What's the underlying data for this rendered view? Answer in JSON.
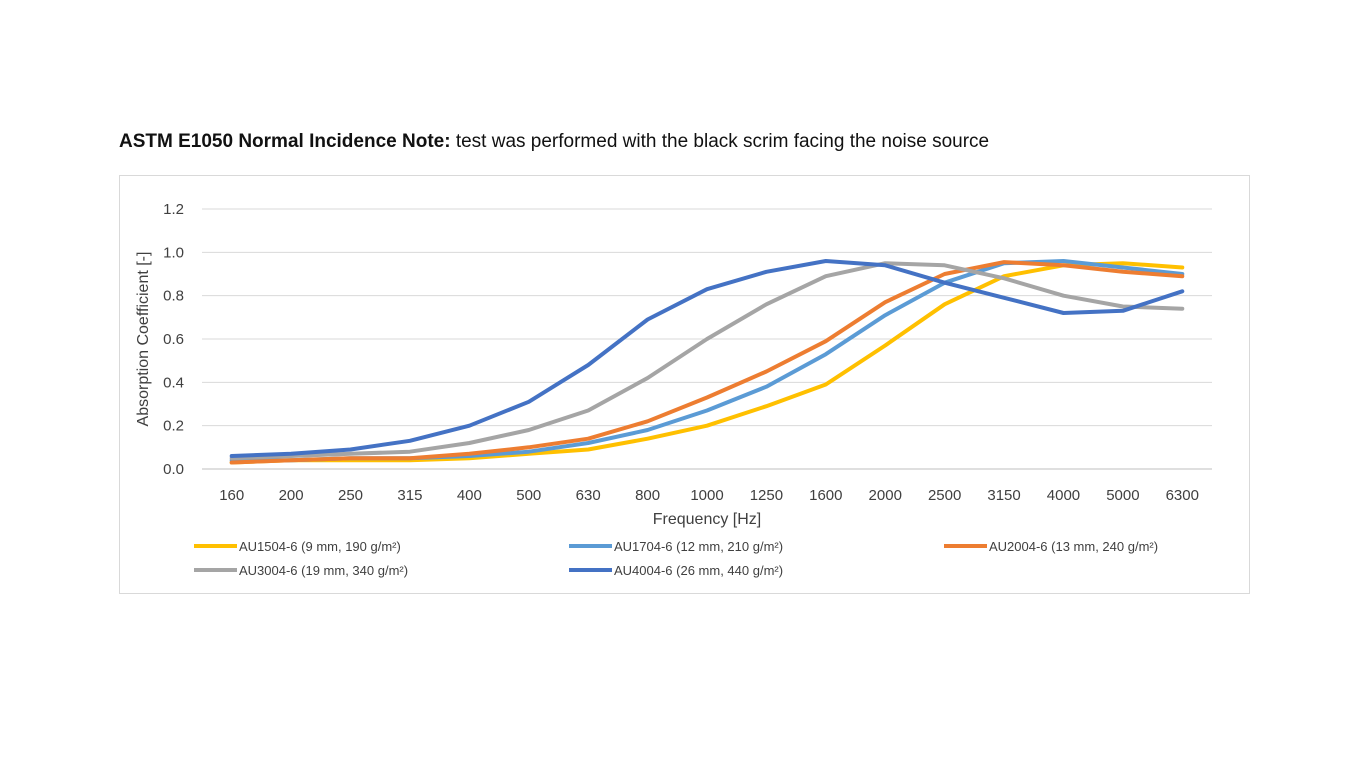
{
  "header": {
    "title_bold": "ASTM E1050 Normal Incidence Note:",
    "title_rest": " test was performed with the black scrim facing the noise source"
  },
  "chart_data": {
    "type": "line",
    "title": "",
    "xlabel": "Frequency [Hz]",
    "ylabel": "Absorption Coefficient [-]",
    "ylim": [
      0,
      1.2
    ],
    "yticks": [
      "0.0",
      "0.2",
      "0.4",
      "0.6",
      "0.8",
      "1.0",
      "1.2"
    ],
    "grid": true,
    "legend_position": "bottom",
    "categories": [
      "160",
      "200",
      "250",
      "315",
      "400",
      "500",
      "630",
      "800",
      "1000",
      "1250",
      "1600",
      "2000",
      "2500",
      "3150",
      "4000",
      "5000",
      "6300"
    ],
    "series": [
      {
        "name": "AU1504-6 (9 mm, 190 g/m²)",
        "color": "#FFC000",
        "values": [
          0.03,
          0.04,
          0.04,
          0.04,
          0.05,
          0.07,
          0.09,
          0.14,
          0.2,
          0.29,
          0.39,
          0.57,
          0.76,
          0.89,
          0.94,
          0.95,
          0.93
        ]
      },
      {
        "name": "AU1704-6 (12 mm, 210 g/m²)",
        "color": "#5B9BD5",
        "values": [
          0.04,
          0.04,
          0.05,
          0.05,
          0.06,
          0.08,
          0.12,
          0.18,
          0.27,
          0.38,
          0.53,
          0.71,
          0.86,
          0.95,
          0.96,
          0.93,
          0.9
        ]
      },
      {
        "name": "AU2004-6 (13 mm, 240 g/m²)",
        "color": "#ED7D31",
        "values": [
          0.03,
          0.04,
          0.05,
          0.05,
          0.07,
          0.1,
          0.14,
          0.22,
          0.33,
          0.45,
          0.59,
          0.77,
          0.9,
          0.955,
          0.94,
          0.91,
          0.89
        ]
      },
      {
        "name": "AU3004-6 (19 mm, 340 g/m²)",
        "color": "#A5A5A5",
        "values": [
          0.05,
          0.06,
          0.07,
          0.08,
          0.12,
          0.18,
          0.27,
          0.42,
          0.6,
          0.76,
          0.89,
          0.95,
          0.94,
          0.88,
          0.8,
          0.75,
          0.74
        ]
      },
      {
        "name": "AU4004-6 (26 mm, 440 g/m²)",
        "color": "#4472C4",
        "values": [
          0.06,
          0.07,
          0.09,
          0.13,
          0.2,
          0.31,
          0.48,
          0.69,
          0.83,
          0.91,
          0.96,
          0.94,
          0.86,
          0.79,
          0.72,
          0.73,
          0.82
        ]
      }
    ]
  }
}
